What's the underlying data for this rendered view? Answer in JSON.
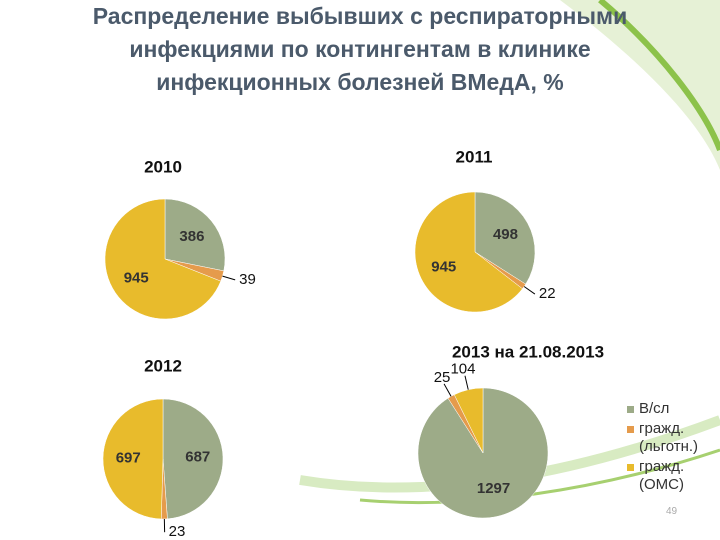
{
  "slide": {
    "title": "Распределение выбывших с респираторными инфекциями по контингентам в клинике инфекционных болезней ВМедА, %",
    "page_number": "49"
  },
  "chart_data": [
    {
      "type": "pie",
      "title": "2010",
      "values": [
        386,
        39,
        945
      ],
      "colors": [
        "#9dab88",
        "#e59b4c",
        "#e8bb2c"
      ]
    },
    {
      "type": "pie",
      "title": "2011",
      "values": [
        498,
        22,
        945
      ],
      "colors": [
        "#9dab88",
        "#e59b4c",
        "#e8bb2c"
      ]
    },
    {
      "type": "pie",
      "title": "2012",
      "values": [
        687,
        23,
        697
      ],
      "colors": [
        "#9dab88",
        "#e59b4c",
        "#e8bb2c"
      ]
    },
    {
      "type": "pie",
      "title": "2013 на 21.08.2013",
      "categories": [
        "В/сл",
        "гражд. (льготн.)",
        "гражд. (ОМС)"
      ],
      "values": [
        1297,
        25,
        104
      ],
      "colors": [
        "#9dab88",
        "#e59b4c",
        "#e8bb2c"
      ],
      "legend": "right"
    }
  ]
}
